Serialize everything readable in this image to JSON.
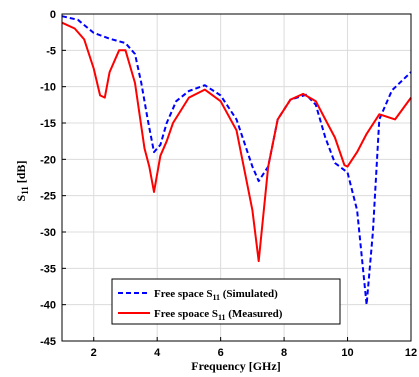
{
  "chart_data": {
    "type": "line",
    "title": "",
    "xlabel": "Frequency [GHz]",
    "ylabel_main": "S",
    "ylabel_sub": "11",
    "ylabel_unit": " [dB]",
    "xlim": [
      1,
      12
    ],
    "ylim": [
      -45,
      0
    ],
    "xticks": [
      2,
      4,
      6,
      8,
      10,
      12
    ],
    "yticks": [
      0,
      -5,
      -10,
      -15,
      -20,
      -25,
      -30,
      -35,
      -40,
      -45
    ],
    "grid": true,
    "legend_position": "bottom-right",
    "series": [
      {
        "name": "Free space S11 (Simulated)",
        "legend_main": "Free space S",
        "legend_sub": "11",
        "legend_rest": " (Simulated)",
        "color": "#0000ff",
        "style": "dashed",
        "x": [
          1,
          1.5,
          2,
          2.5,
          3,
          3.3,
          3.5,
          3.7,
          3.9,
          4.1,
          4.3,
          4.6,
          5.0,
          5.5,
          6.0,
          6.5,
          7.0,
          7.2,
          7.5,
          7.8,
          8.2,
          8.7,
          9.0,
          9.3,
          9.6,
          10.0,
          10.3,
          10.6,
          10.8,
          11.0,
          11.4,
          12.0
        ],
        "y": [
          -0.3,
          -0.8,
          -2.6,
          -3.4,
          -4.0,
          -5.5,
          -9.5,
          -14.5,
          -19.0,
          -18.0,
          -15.0,
          -12.0,
          -10.6,
          -9.8,
          -11.2,
          -14.5,
          -21.0,
          -23.0,
          -21.0,
          -14.5,
          -11.8,
          -11.1,
          -12.5,
          -17.0,
          -20.5,
          -21.8,
          -27.0,
          -40.0,
          -30.0,
          -14.5,
          -10.5,
          -8.0
        ]
      },
      {
        "name": "Free spoace S11 (Measured)",
        "legend_main": "Free spoace S",
        "legend_sub": "11",
        "legend_rest": " (Measured)",
        "color": "#ff0000",
        "style": "solid",
        "x": [
          1,
          1.4,
          1.7,
          2.0,
          2.2,
          2.35,
          2.5,
          2.8,
          3.0,
          3.3,
          3.6,
          3.75,
          3.9,
          4.1,
          4.3,
          4.5,
          5.0,
          5.5,
          6.0,
          6.5,
          7.0,
          7.2,
          7.5,
          7.8,
          8.2,
          8.6,
          9.0,
          9.3,
          9.6,
          9.9,
          10.0,
          10.3,
          10.6,
          11.0,
          11.5,
          12.0
        ],
        "y": [
          -1.2,
          -2.0,
          -3.5,
          -7.5,
          -11.2,
          -11.5,
          -8.0,
          -5.0,
          -5.0,
          -9.5,
          -18.5,
          -21.0,
          -24.5,
          -19.5,
          -17.5,
          -15.0,
          -11.5,
          -10.4,
          -12.0,
          -16.0,
          -27.0,
          -34.0,
          -21.0,
          -14.5,
          -11.8,
          -11.0,
          -12.0,
          -14.5,
          -17.0,
          -20.8,
          -21.0,
          -19.0,
          -16.5,
          -13.8,
          -14.5,
          -11.5
        ]
      }
    ]
  }
}
